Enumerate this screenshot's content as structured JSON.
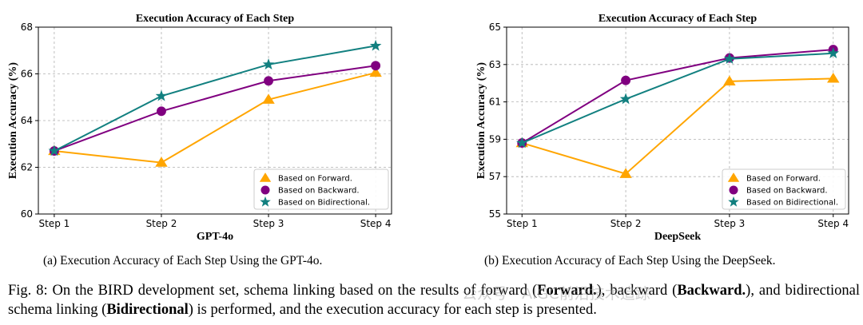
{
  "chart_data": [
    {
      "type": "line",
      "title": "Execution Accuracy of Each Step",
      "xlabel": "GPT-4o",
      "ylabel": "Execution Accuracy (%)",
      "categories": [
        "Step 1",
        "Step 2",
        "Step 3",
        "Step 4"
      ],
      "ylim": [
        60,
        68
      ],
      "yticks": [
        60,
        62,
        64,
        66,
        68
      ],
      "grid": true,
      "legend_position": "bottom-right",
      "series": [
        {
          "name": "Based on Forward.",
          "color": "#ffa500",
          "marker": "triangle",
          "values": [
            62.7,
            62.2,
            64.9,
            66.05
          ]
        },
        {
          "name": "Based on Backward.",
          "color": "#800080",
          "marker": "circle",
          "values": [
            62.7,
            64.4,
            65.7,
            66.35
          ]
        },
        {
          "name": "Based on Bidirectional.",
          "color": "#128080",
          "marker": "star",
          "values": [
            62.7,
            65.05,
            66.4,
            67.2
          ]
        }
      ]
    },
    {
      "type": "line",
      "title": "Execution Accuracy of Each Step",
      "xlabel": "DeepSeek",
      "ylabel": "Execution Accuracy (%)",
      "categories": [
        "Step 1",
        "Step 2",
        "Step 3",
        "Step 4"
      ],
      "ylim": [
        55,
        65
      ],
      "yticks": [
        55,
        57,
        59,
        61,
        63,
        65
      ],
      "grid": true,
      "legend_position": "bottom-right",
      "series": [
        {
          "name": "Based on Forward.",
          "color": "#ffa500",
          "marker": "triangle",
          "values": [
            58.8,
            57.15,
            62.1,
            62.25
          ]
        },
        {
          "name": "Based on Backward.",
          "color": "#800080",
          "marker": "circle",
          "values": [
            58.8,
            62.15,
            63.35,
            63.8
          ]
        },
        {
          "name": "Based on Bidirectional.",
          "color": "#128080",
          "marker": "star",
          "values": [
            58.8,
            61.15,
            63.3,
            63.6
          ]
        }
      ]
    }
  ],
  "captions": {
    "sub_a": "(a) Execution Accuracy of Each Step Using the GPT-4o.",
    "sub_b": "(b) Execution Accuracy of Each Step Using the DeepSeek.",
    "fig": {
      "p1": "Fig. 8: On the BIRD development set, schema linking based on the results of forward (",
      "b1": "Forward.",
      "p2": "), backward (",
      "b2": "Backward.",
      "p3": "), and bidirectional schema linking (",
      "b3": "Bidirectional",
      "p4": ") is performed, and the execution accuracy for each step is presented."
    },
    "watermark": "公众号 · AIGC前沿技术追踪"
  }
}
